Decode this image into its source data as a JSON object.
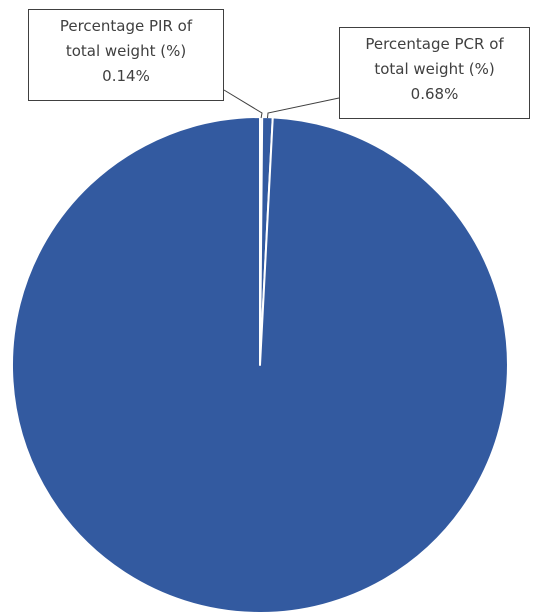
{
  "chart_data": {
    "type": "pie",
    "title": "",
    "slices": [
      {
        "label": "Percentage PIR of total weight (%)",
        "label_lines": [
          "Percentage PIR of",
          "total weight (%)"
        ],
        "value": 0.14,
        "display": "0.14%",
        "color": "#335AA0"
      },
      {
        "label": "Percentage PCR of total weight (%)",
        "label_lines": [
          "Percentage PCR of",
          "total weight (%)"
        ],
        "value": 0.68,
        "display": "0.68%",
        "color": "#335AA0"
      },
      {
        "label": "",
        "value": 99.18,
        "display": "",
        "color": "#335AA0"
      }
    ],
    "slice_border_color": "#ffffff",
    "legend": "none",
    "data_label_style": "callout"
  }
}
